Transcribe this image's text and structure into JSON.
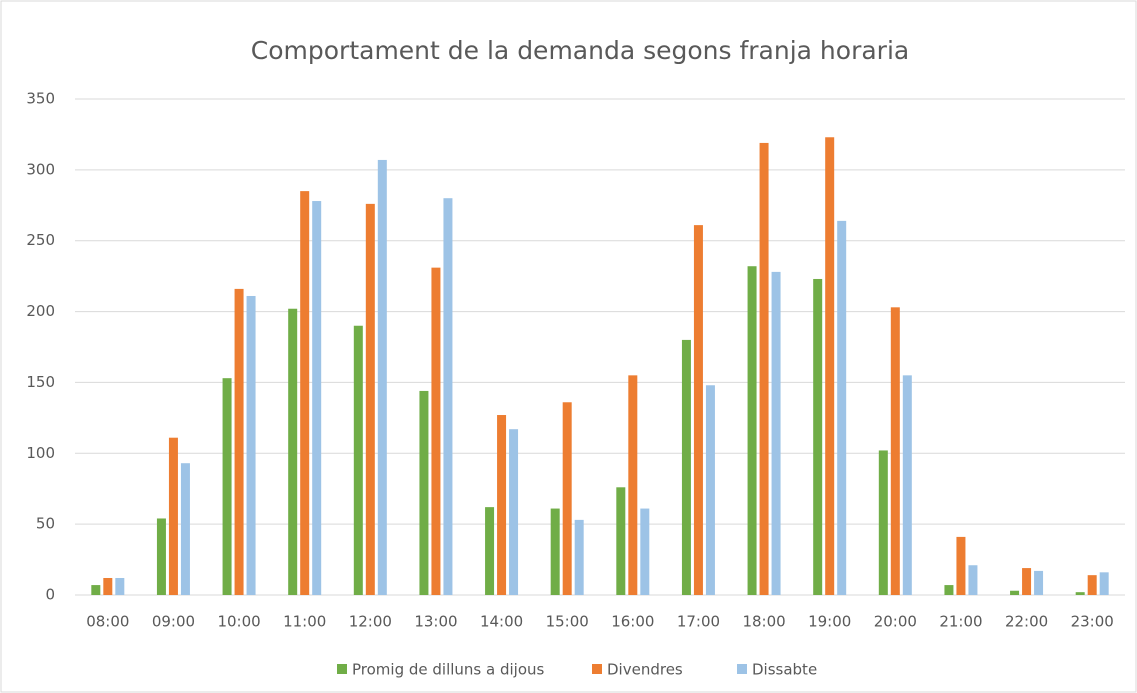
{
  "chart_data": {
    "type": "bar",
    "title": "Comportament de la demanda segons franja horaria",
    "categories": [
      "08:00",
      "09:00",
      "10:00",
      "11:00",
      "12:00",
      "13:00",
      "14:00",
      "15:00",
      "16:00",
      "17:00",
      "18:00",
      "19:00",
      "20:00",
      "21:00",
      "22:00",
      "23:00"
    ],
    "series": [
      {
        "name": "Promig de dilluns a dijous",
        "color": "#70ad47",
        "values": [
          7,
          54,
          153,
          202,
          190,
          144,
          62,
          61,
          76,
          180,
          232,
          223,
          102,
          7,
          3,
          2
        ]
      },
      {
        "name": "Divendres",
        "color": "#ed7d31",
        "values": [
          12,
          111,
          216,
          285,
          276,
          231,
          127,
          136,
          155,
          261,
          319,
          323,
          203,
          41,
          19,
          14
        ]
      },
      {
        "name": "Dissabte",
        "color": "#9dc3e6",
        "values": [
          12,
          93,
          211,
          278,
          307,
          280,
          117,
          53,
          61,
          148,
          228,
          264,
          155,
          21,
          17,
          16
        ]
      }
    ],
    "ylim": [
      0,
      350
    ],
    "yticks": [
      0,
      50,
      100,
      150,
      200,
      250,
      300,
      350
    ],
    "grid": true,
    "legend": "bottom"
  }
}
